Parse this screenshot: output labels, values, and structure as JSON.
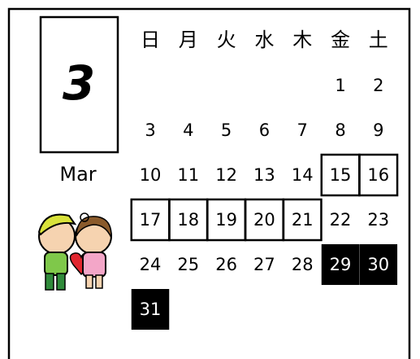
{
  "month_number": "3",
  "month_name": "Mar",
  "weekdays": [
    "日",
    "月",
    "火",
    "水",
    "木",
    "金",
    "土"
  ],
  "weeks": [
    [
      null,
      null,
      null,
      null,
      null,
      {
        "text": "1"
      },
      {
        "text": "2"
      }
    ],
    [
      {
        "text": "3"
      },
      {
        "text": "4"
      },
      {
        "text": "5"
      },
      {
        "text": "6"
      },
      {
        "text": "7"
      },
      {
        "text": "8"
      },
      {
        "text": "9"
      }
    ],
    [
      {
        "text": "10"
      },
      {
        "text": "11"
      },
      {
        "text": "12"
      },
      {
        "text": "13"
      },
      {
        "text": "14"
      },
      {
        "text": "15",
        "style": "boxed"
      },
      {
        "text": "16",
        "style": "boxed"
      }
    ],
    [
      {
        "text": "17",
        "style": "boxed"
      },
      {
        "text": "18",
        "style": "boxed"
      },
      {
        "text": "19",
        "style": "boxed"
      },
      {
        "text": "20",
        "style": "boxed"
      },
      {
        "text": "21",
        "style": "boxed"
      },
      {
        "text": "22"
      },
      {
        "text": "23"
      }
    ],
    [
      {
        "text": "24"
      },
      {
        "text": "25"
      },
      {
        "text": "26"
      },
      {
        "text": "27"
      },
      {
        "text": "28"
      },
      {
        "text": "29",
        "style": "inverted"
      },
      {
        "text": "30",
        "style": "inverted"
      }
    ],
    [
      {
        "text": "31",
        "style": "inverted"
      },
      null,
      null,
      null,
      null,
      null,
      null
    ]
  ]
}
